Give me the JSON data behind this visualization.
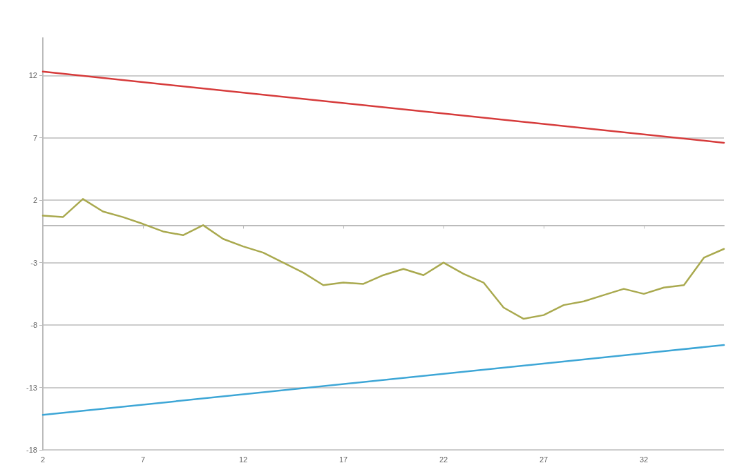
{
  "chart_data": {
    "type": "line",
    "series": [
      {
        "color": "#d63b3b",
        "x": [
          2,
          36
        ],
        "values": [
          12.3,
          6.6
        ]
      },
      {
        "color": "#a9a94e",
        "x": [
          2,
          3,
          4,
          5,
          6,
          7,
          8,
          9,
          10,
          11,
          12,
          13,
          14,
          15,
          16,
          17,
          18,
          19,
          20,
          21,
          22,
          23,
          24,
          25,
          26,
          27,
          28,
          29,
          30,
          31,
          32,
          33,
          34,
          35,
          36
        ],
        "values": [
          0.76,
          0.65,
          2.1,
          1.1,
          0.65,
          0.1,
          -0.5,
          -0.8,
          0,
          -1.1,
          -1.7,
          -2.2,
          -3.0,
          -3.8,
          -4.8,
          -4.6,
          -4.7,
          -4.0,
          -3.5,
          -4.0,
          -3.0,
          -3.9,
          -4.6,
          -6.6,
          -7.5,
          -7.2,
          -6.4,
          -6.1,
          -5.6,
          -5.1,
          -5.5,
          -5.0,
          -4.8,
          -2.6,
          -1.9
        ]
      },
      {
        "color": "#3da6d6",
        "x": [
          2,
          36
        ],
        "values": [
          -15.2,
          -9.6
        ]
      }
    ],
    "xlim": [
      2,
      36
    ],
    "xticks": [
      2,
      7,
      12,
      17,
      22,
      27,
      32
    ],
    "ylim": [
      -18,
      15
    ],
    "yticks": [
      -18,
      -13,
      -8,
      -3,
      2,
      7,
      12
    ],
    "grid": "y",
    "marker": "none",
    "line_style": "solid"
  }
}
